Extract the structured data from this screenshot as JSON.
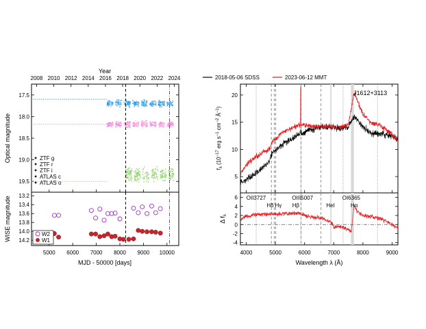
{
  "chart_data": [
    {
      "type": "scatter",
      "top_axis": {
        "label": "Year",
        "ticks": [
          "2008",
          "2010",
          "2012",
          "2014",
          "2016",
          "2018",
          "2020",
          "2022",
          "2024"
        ],
        "tick_mjd": [
          4466,
          5197,
          5927,
          6658,
          7388,
          8119,
          8849,
          9580,
          10310
        ]
      },
      "xlim": [
        4250,
        10500
      ],
      "ylim": [
        19.75,
        17.25
      ],
      "ylabel": "Optical magnitude",
      "yticks": [
        "17.5",
        "18.0",
        "18.5",
        "19.0",
        "19.5"
      ],
      "ytick_values": [
        17.5,
        18.0,
        18.5,
        19.0,
        19.5
      ],
      "legend": [
        "ZTF g",
        "ZTF r",
        "ZTF i",
        "ATLAS c",
        "ATLAS o"
      ],
      "series": [
        {
          "name": "ZTF g",
          "color": "#90d36a",
          "x_range": [
            8250,
            10300
          ],
          "mean_mag": 19.35,
          "spread": 0.22
        },
        {
          "name": "ZTF r",
          "color": "#ee82ee",
          "x_range": [
            7450,
            10300
          ],
          "mean_mag": 18.18,
          "spread": 0.1
        },
        {
          "name": "ZTF i",
          "color": "#1e8ee8",
          "x_range": [
            7450,
            10300
          ],
          "mean_mag": 17.7,
          "spread": 0.1
        },
        {
          "name": "ATLAS c",
          "color": "#78c8e6",
          "x_range": [
            7450,
            10300
          ],
          "mean_mag": 17.7,
          "spread": 0.1
        },
        {
          "name": "ATLAS o",
          "color": "#ffb6c8",
          "x_range": [
            7450,
            10300
          ],
          "mean_mag": 18.18,
          "spread": 0.1
        }
      ],
      "reference_lines": [
        {
          "mag": 17.6,
          "color": "#1e8ee8"
        },
        {
          "mag": 18.18,
          "color": "#ee82ee"
        },
        {
          "mag": 19.5,
          "color": "#90d36a"
        }
      ],
      "vlines": [
        {
          "mjd": 8247,
          "color": "#000000",
          "style": "dashed"
        },
        {
          "mjd": 10108,
          "color": "#d62728",
          "style": "dashdot"
        }
      ]
    },
    {
      "type": "scatter",
      "xlim": [
        4250,
        10500
      ],
      "ylim": [
        14.32,
        13.12
      ],
      "xlabel": "MJD - 50000 [days]",
      "xticks": [
        "5000",
        "6000",
        "7000",
        "8000",
        "9000",
        "10000"
      ],
      "xtick_values": [
        5000,
        6000,
        7000,
        8000,
        9000,
        10000
      ],
      "ylabel": "WISE magnitude",
      "yticks": [
        "13.2",
        "13.4",
        "13.6",
        "13.8",
        "14.0",
        "14.2"
      ],
      "ytick_values": [
        13.2,
        13.4,
        13.6,
        13.8,
        14.0,
        14.2
      ],
      "legend": [
        "W2",
        "W1"
      ],
      "series": [
        {
          "name": "W2",
          "color": "#9932cc",
          "x": [
            5220,
            5400,
            6790,
            6970,
            7150,
            7330,
            7490,
            7650,
            7800,
            8000,
            8580,
            8780,
            8950,
            9150,
            9350,
            9520,
            9720
          ],
          "y": [
            13.64,
            13.64,
            13.53,
            13.7,
            13.5,
            13.75,
            13.6,
            13.6,
            13.59,
            13.72,
            13.48,
            13.58,
            13.45,
            13.6,
            13.43,
            13.58,
            13.49
          ]
        },
        {
          "name": "W1",
          "color": "#c0282d",
          "x": [
            5220,
            5400,
            6790,
            6970,
            7150,
            7330,
            7490,
            7650,
            7800,
            8000,
            8150,
            8380,
            8580,
            8780,
            8950,
            9150,
            9350,
            9520,
            9720
          ],
          "y": [
            14.05,
            14.13,
            14.06,
            14.06,
            14.12,
            14.1,
            14.06,
            14.12,
            14.11,
            14.17,
            14.18,
            14.18,
            14.17,
            13.98,
            14.0,
            14.01,
            14.01,
            14.02,
            14.04
          ]
        }
      ],
      "vlines": [
        {
          "mjd": 8247,
          "color": "#000000",
          "style": "dashed"
        },
        {
          "mjd": 10108,
          "color": "#d62728",
          "style": "dashdot"
        }
      ]
    },
    {
      "type": "line",
      "xlim": [
        3800,
        9200
      ],
      "ylim": [
        2,
        22
      ],
      "ylabel": "f_λ (10^-17 erg s^-1 cm^-2 Å^-1)",
      "ylabel_parts": {
        "main": "f",
        "sub": "λ",
        "rest": " (10",
        "exp1": "−17",
        "mid": " erg s",
        "exp2": "−1",
        "mid2": "cm",
        "exp3": "−2",
        "mid3": " Å",
        "exp4": "−1",
        "end": ")"
      },
      "yticks": [
        "5",
        "10",
        "15",
        "20"
      ],
      "ytick_values": [
        5,
        10,
        15,
        20
      ],
      "object_label": "J1612+3113",
      "legend": [
        {
          "name": "2018-05-06 SDSS",
          "color": "#000000"
        },
        {
          "name": "2023-06-12 MMT",
          "color": "#e8141a"
        }
      ],
      "series": [
        {
          "name": "2018-05-06 SDSS",
          "color": "#000000",
          "x": [
            3800,
            4000,
            4300,
            4600,
            4800,
            4900,
            5000,
            5200,
            5500,
            5800,
            6000,
            6300,
            6600,
            6900,
            7200,
            7500,
            7700,
            8000,
            8300,
            8600,
            8900,
            9200
          ],
          "y": [
            3.8,
            4.5,
            5.5,
            6.8,
            8.0,
            9.5,
            9.8,
            10.8,
            11.7,
            12.8,
            13.2,
            13.8,
            14.2,
            14.1,
            13.9,
            14.0,
            16.0,
            14.2,
            12.8,
            12.9,
            12.6,
            12.0
          ]
        },
        {
          "name": "2023-06-12 MMT",
          "color": "#e8141a",
          "x": [
            3800,
            4000,
            4300,
            4600,
            4800,
            4900,
            5000,
            5200,
            5500,
            5800,
            6000,
            6300,
            6600,
            6900,
            7200,
            7500,
            7700,
            8000,
            8300,
            8600,
            8900,
            9200
          ],
          "y": [
            5.5,
            7.2,
            8.5,
            9.5,
            10.0,
            11.5,
            11.8,
            13.0,
            13.7,
            14.5,
            14.5,
            14.2,
            14.3,
            14.2,
            14.0,
            14.6,
            20.5,
            16.5,
            14.8,
            14.5,
            13.2,
            11.5
          ]
        }
      ],
      "narrow_lines": [
        5007
      ],
      "dotted_lines": [
        4341,
        5876,
        7320,
        8500
      ],
      "dashed_lines": [
        4861,
        5007,
        4959,
        5876,
        6563
      ],
      "bands": [
        {
          "from": 6880,
          "to": 6920
        },
        {
          "from": 7590,
          "to": 7690
        }
      ]
    },
    {
      "type": "line",
      "xlim": [
        3800,
        9200
      ],
      "ylim": [
        -4.5,
        7
      ],
      "xlabel": "Wavelength λ (Å)",
      "xticks": [
        "4000",
        "5000",
        "6000",
        "7000",
        "8000",
        "9000"
      ],
      "xtick_values": [
        4000,
        5000,
        6000,
        7000,
        8000,
        9000
      ],
      "ylabel": "Δ f_λ",
      "yticks": [
        "6",
        "4",
        "2",
        "0",
        "-2",
        "-4"
      ],
      "ytick_values": [
        6,
        4,
        2,
        0,
        -2,
        -4
      ],
      "line_labels": [
        {
          "text": "OII3727",
          "x": 4340,
          "y": 5.5
        },
        {
          "text": "Hδ",
          "x": 4820,
          "y": 3.8
        },
        {
          "text": "Hγ",
          "x": 5100,
          "y": 3.8
        },
        {
          "text": "Hβ",
          "x": 5700,
          "y": 3.8
        },
        {
          "text": "OIII5007",
          "x": 5930,
          "y": 5.5
        },
        {
          "text": "HeI",
          "x": 6890,
          "y": 3.8
        },
        {
          "text": "OI6365",
          "x": 7600,
          "y": 5.5
        },
        {
          "text": "Hα",
          "x": 7700,
          "y": 3.8
        }
      ],
      "series": [
        {
          "name": "difference",
          "color": "#e8141a",
          "x": [
            3800,
            4000,
            4300,
            4600,
            4800,
            5000,
            5200,
            5500,
            5800,
            6000,
            6300,
            6600,
            6900,
            7000,
            7200,
            7400,
            7600,
            7700,
            7800,
            8000,
            8300,
            8600,
            8900,
            9200
          ],
          "y": [
            1.2,
            1.8,
            2.2,
            2.2,
            2.3,
            2.3,
            2.4,
            2.4,
            2.6,
            2.0,
            1.6,
            1.4,
            0.6,
            -0.5,
            -0.5,
            -0.8,
            -1.5,
            4.2,
            2.8,
            2.0,
            1.8,
            1.3,
            0.5,
            -0.8
          ]
        }
      ],
      "zero_line": 0
    }
  ]
}
